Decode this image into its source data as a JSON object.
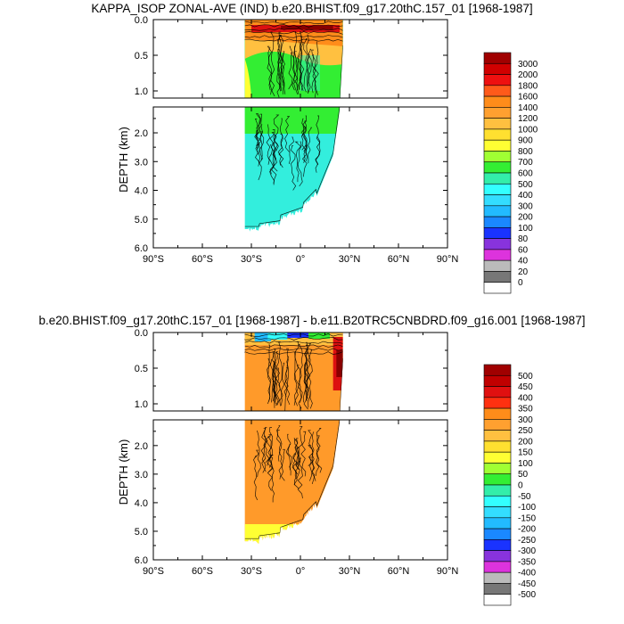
{
  "panels": [
    {
      "title": "KAPPA_ISOP ZONAL-AVE (IND) b.e20.BHIST.f09_g17.20thC.157_01 [1968-1987]",
      "ylabel": "DEPTH (km)",
      "upper_ticks": [
        "0.0",
        "0.5",
        "1.0"
      ],
      "lower_ticks": [
        "2.0",
        "3.0",
        "4.0",
        "5.0",
        "6.0"
      ],
      "x_ticks": [
        "90°S",
        "60°S",
        "30°S",
        "0°",
        "30°N",
        "60°N",
        "90°N"
      ],
      "legend": {
        "labels": [
          "3000",
          "2000",
          "1800",
          "1600",
          "1400",
          "1200",
          "1000",
          "900",
          "800",
          "700",
          "600",
          "500",
          "400",
          "300",
          "200",
          "100",
          "80",
          "60",
          "40",
          "20",
          "0"
        ],
        "colors": [
          "#a00000",
          "#d00000",
          "#ee1010",
          "#ff5a1a",
          "#ff8c1a",
          "#ffa030",
          "#ffc040",
          "#ffe030",
          "#ffff33",
          "#a0ff33",
          "#33ee33",
          "#33eeaa",
          "#33ffff",
          "#33ddff",
          "#22bbff",
          "#1a88ff",
          "#1a33ff",
          "#8833dd",
          "#dd33dd",
          "#bbbbbb",
          "#777777",
          "#ffffff"
        ]
      }
    },
    {
      "title": "b.e20.BHIST.f09_g17.20thC.157_01 [1968-1987] - b.e11.B20TRC5CNBDRD.f09_g16.001 [1968-1987]",
      "ylabel": "DEPTH (km)",
      "upper_ticks": [
        "0.0",
        "0.5",
        "1.0"
      ],
      "lower_ticks": [
        "2.0",
        "3.0",
        "4.0",
        "5.0",
        "6.0"
      ],
      "x_ticks": [
        "90°S",
        "60°S",
        "30°S",
        "0°",
        "30°N",
        "60°N",
        "90°N"
      ],
      "legend": {
        "labels": [
          "500",
          "450",
          "400",
          "350",
          "300",
          "250",
          "200",
          "150",
          "100",
          "50",
          "0",
          "-50",
          "-100",
          "-150",
          "-200",
          "-250",
          "-300",
          "-350",
          "-400",
          "-450",
          "-500"
        ],
        "colors": [
          "#a00000",
          "#c00000",
          "#e01010",
          "#ff3010",
          "#ff8c1a",
          "#ffa030",
          "#ffc040",
          "#ffe030",
          "#ffff33",
          "#a0ff33",
          "#33ee33",
          "#33eeaa",
          "#33ffff",
          "#33ddff",
          "#22bbff",
          "#1a88ff",
          "#1a33ff",
          "#8833dd",
          "#dd33dd",
          "#bbbbbb",
          "#777777",
          "#ffffff"
        ]
      }
    }
  ],
  "chart_data": [
    {
      "type": "heatmap",
      "title": "KAPPA_ISOP ZONAL-AVE (IND) b.e20.BHIST.f09_g17.20thC.157_01 [1968-1987]",
      "xlabel": "",
      "ylabel": "DEPTH (km)",
      "xlim": [
        -90,
        90
      ],
      "ylim": [
        6.0,
        0.0
      ],
      "y_scale": "split at 1.1 km (expanded upper 0-1.1 km)",
      "data_region_lat": [
        -34,
        26
      ],
      "contour_levels": [
        0,
        20,
        40,
        60,
        80,
        100,
        200,
        300,
        400,
        500,
        600,
        700,
        800,
        900,
        1000,
        1200,
        1400,
        1600,
        1800,
        2000,
        3000
      ],
      "dominant_values": {
        "surface_0_0.1km": "1600-3000",
        "upper_0.1_0.5km": "1000-1400",
        "0.5_1.1km": "700-1000",
        "deep_1.5_5.3km": "500-600"
      }
    },
    {
      "type": "heatmap",
      "title": "b.e20.BHIST.f09_g17.20thC.157_01 [1968-1987] - b.e11.B20TRC5CNBDRD.f09_g16.001 [1968-1987]",
      "xlabel": "",
      "ylabel": "DEPTH (km)",
      "xlim": [
        -90,
        90
      ],
      "ylim": [
        6.0,
        0.0
      ],
      "y_scale": "split at 1.1 km (expanded upper 0-1.1 km)",
      "data_region_lat": [
        -34,
        26
      ],
      "contour_levels": [
        -500,
        -450,
        -400,
        -350,
        -300,
        -250,
        -200,
        -150,
        -100,
        -50,
        0,
        50,
        100,
        150,
        200,
        250,
        300,
        350,
        400,
        450,
        500
      ],
      "dominant_values": {
        "surface_0_0.1km": "-300 to 500 (mixed)",
        "interior": "250-300",
        "northern_boundary_upper": "400-500"
      }
    }
  ]
}
